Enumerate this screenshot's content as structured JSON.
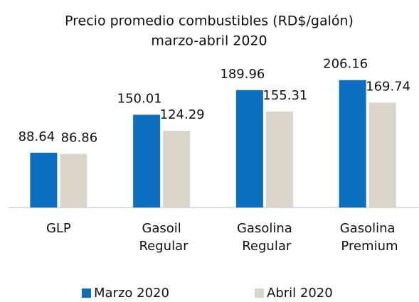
{
  "chart_data": {
    "type": "bar",
    "title": "Precio promedio combustibles (RD$/galón)",
    "subtitle": "marzo-abril 2020",
    "categories": [
      "GLP",
      "Gasoil Regular",
      "Gasolina Regular",
      "Gasolina Premium"
    ],
    "series": [
      {
        "name": "Marzo 2020",
        "color": "#0b6ebf",
        "values": [
          88.64,
          150.01,
          189.96,
          206.16
        ]
      },
      {
        "name": "Abril 2020",
        "color": "#dbd5c9",
        "values": [
          86.86,
          124.29,
          155.31,
          169.74
        ]
      }
    ],
    "ylim": [
      0,
      230
    ],
    "legend": "bottom"
  }
}
